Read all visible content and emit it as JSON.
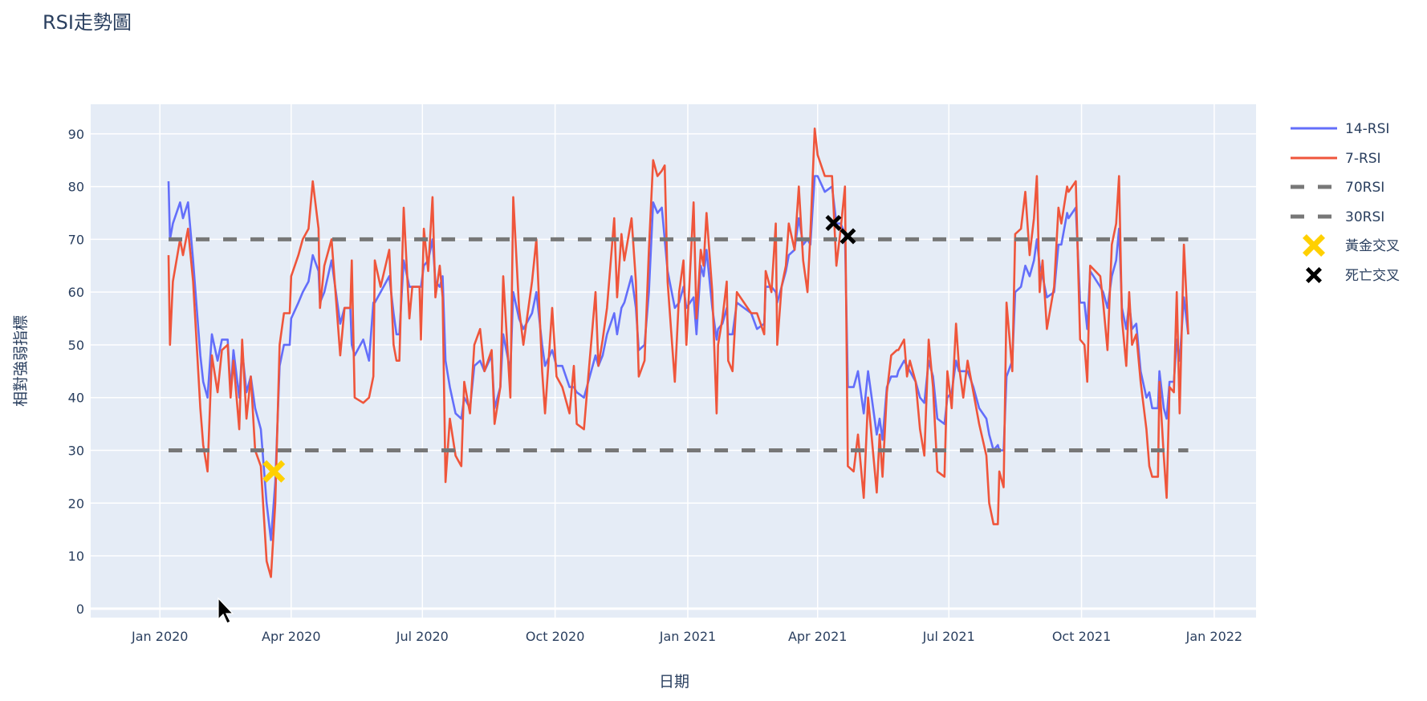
{
  "chart_data": {
    "type": "line",
    "title": "RSI走勢圖",
    "xlabel": "日期",
    "ylabel": "相對強弱指標",
    "x_origin": "2020-01-01",
    "x_unit": "days since origin",
    "xlim_days": [
      -48,
      760
    ],
    "ylim": [
      -1.7,
      95.6
    ],
    "yticks": [
      0,
      10,
      20,
      30,
      40,
      50,
      60,
      70,
      80,
      90
    ],
    "xticks": [
      {
        "label": "Jan 2020",
        "day": 0
      },
      {
        "label": "Apr 2020",
        "day": 91
      },
      {
        "label": "Jul 2020",
        "day": 182
      },
      {
        "label": "Oct 2020",
        "day": 274
      },
      {
        "label": "Jan 2021",
        "day": 366
      },
      {
        "label": "Apr 2021",
        "day": 456
      },
      {
        "label": "Jul 2021",
        "day": 547
      },
      {
        "label": "Oct 2021",
        "day": 639
      },
      {
        "label": "Jan 2022",
        "day": 731
      }
    ],
    "grid": true,
    "legend_placement": "right",
    "x_days": [
      6,
      7,
      9,
      14,
      16,
      19.5,
      23,
      28,
      30,
      33,
      36,
      40,
      43,
      47,
      49,
      51,
      55,
      57,
      60,
      63,
      66,
      70,
      74,
      77,
      80,
      83,
      86,
      90,
      91,
      96,
      99,
      103,
      106,
      110,
      111,
      114,
      119,
      125,
      128,
      132,
      133,
      135,
      141,
      145,
      148,
      149,
      153,
      159,
      162,
      164,
      166,
      169,
      173,
      175,
      180,
      181,
      183,
      186,
      189,
      191,
      194,
      196,
      198,
      201,
      205,
      209,
      211,
      215,
      218,
      222,
      225,
      230,
      232,
      236,
      238,
      243,
      245,
      249,
      252,
      258,
      261,
      265,
      267,
      272,
      275,
      279,
      284,
      287,
      289,
      294,
      297,
      302,
      304,
      307,
      310,
      315,
      317,
      320,
      322,
      327,
      330,
      332,
      336,
      339,
      342,
      345,
      348,
      350,
      352,
      357,
      360,
      363,
      365,
      370,
      372,
      375,
      377,
      379,
      383,
      386,
      387,
      390,
      393,
      394,
      397,
      400,
      410,
      414,
      419,
      420,
      424,
      427,
      428,
      431,
      434,
      436,
      440,
      443,
      446,
      449,
      451,
      454,
      456,
      461,
      466,
      469,
      472,
      475,
      477,
      481,
      484,
      488,
      491,
      497,
      499,
      501,
      504,
      507,
      511,
      512,
      516,
      518,
      520,
      524,
      527,
      530,
      533,
      536,
      539,
      544,
      546,
      549,
      552,
      554,
      557,
      560,
      564,
      568,
      573,
      575,
      578,
      581,
      582,
      585,
      587,
      591,
      593,
      597,
      600,
      603,
      606,
      608,
      610,
      612,
      615,
      620,
      623,
      625,
      629,
      630,
      635,
      638,
      641,
      643,
      645,
      652,
      654,
      657,
      660,
      663,
      665,
      667,
      670,
      672,
      674,
      677,
      680,
      684,
      686,
      688,
      692,
      693,
      696,
      698,
      700,
      703,
      705,
      707,
      710,
      713
    ],
    "series": [
      {
        "name": "14-RSI",
        "color": "#636efa",
        "values": [
          81,
          70,
          73,
          77,
          74,
          77,
          66,
          48,
          43,
          40,
          52,
          47,
          51,
          51,
          41,
          49,
          40,
          49,
          41,
          44,
          38,
          34,
          20,
          13,
          24,
          46,
          50,
          50,
          55,
          58,
          60,
          62,
          67,
          64,
          58,
          60,
          66,
          54,
          57,
          57,
          50,
          48,
          51,
          47,
          58,
          58,
          60,
          63,
          56,
          52,
          52,
          66,
          61,
          61,
          61,
          61,
          65,
          66,
          70,
          62,
          61,
          63,
          47,
          42,
          37,
          36,
          40,
          38,
          46,
          47,
          45,
          48,
          38,
          42,
          52,
          45,
          60,
          55,
          53,
          56,
          60,
          50,
          46,
          49,
          46,
          46,
          42,
          42,
          41,
          40,
          43,
          48,
          46,
          48,
          52,
          56,
          52,
          57,
          58,
          63,
          57,
          49,
          50,
          60,
          77,
          75,
          76,
          70,
          64,
          57,
          58,
          61,
          57,
          59,
          52,
          65,
          63,
          68,
          57,
          51,
          53,
          54,
          57,
          52,
          52,
          58,
          56,
          53,
          54,
          61,
          61,
          60,
          58,
          61,
          64,
          67,
          68,
          74,
          69,
          70,
          69,
          82,
          82,
          79,
          80,
          73,
          73,
          71,
          42,
          42,
          45,
          37,
          45,
          33,
          36,
          32,
          42,
          44,
          44,
          45,
          47,
          46,
          45,
          43,
          40,
          39,
          47,
          44,
          36,
          35,
          40,
          41,
          47,
          45,
          45,
          45,
          42,
          38,
          36,
          33,
          30,
          31,
          30,
          30,
          44,
          47,
          60,
          61,
          65,
          63,
          66,
          70,
          65,
          63,
          59,
          60,
          69,
          69,
          75,
          74,
          76,
          58,
          58,
          53,
          64,
          61,
          60,
          57,
          63,
          66,
          72,
          57,
          53,
          58,
          53,
          54,
          45,
          40,
          41,
          38,
          38,
          45,
          38,
          36,
          43,
          43,
          51,
          47,
          59,
          52
        ]
      },
      {
        "name": "7-RSI",
        "color": "#EF553B",
        "values": [
          67,
          50,
          62,
          70,
          67,
          72,
          62,
          38,
          31,
          26,
          48,
          41,
          49,
          50,
          40,
          47,
          34,
          51,
          36,
          44,
          30,
          27,
          9,
          6,
          20,
          50,
          56,
          56,
          63,
          67,
          70,
          72,
          81,
          72,
          57,
          65,
          70,
          48,
          57,
          57,
          66,
          40,
          39,
          40,
          44,
          66,
          61,
          68,
          50,
          47,
          47,
          76,
          55,
          61,
          61,
          51,
          72,
          64,
          78,
          59,
          65,
          59,
          24,
          36,
          29,
          27,
          43,
          37,
          50,
          53,
          45,
          49,
          35,
          42,
          63,
          40,
          78,
          57,
          50,
          62,
          70,
          45,
          37,
          57,
          44,
          42,
          37,
          46,
          35,
          34,
          44,
          60,
          46,
          51,
          57,
          74,
          59,
          71,
          66,
          74,
          62,
          44,
          47,
          68,
          85,
          82,
          83,
          84,
          62,
          43,
          60,
          66,
          50,
          77,
          55,
          68,
          65,
          75,
          60,
          37,
          50,
          55,
          62,
          47,
          45,
          60,
          56,
          56,
          52,
          64,
          60,
          73,
          50,
          61,
          65,
          73,
          68,
          80,
          66,
          60,
          71,
          91,
          86,
          82,
          82,
          65,
          72,
          80,
          27,
          26,
          33,
          21,
          40,
          22,
          33,
          25,
          41,
          48,
          49,
          49,
          51,
          44,
          47,
          43,
          34,
          29,
          51,
          42,
          26,
          25,
          45,
          38,
          54,
          46,
          40,
          47,
          41,
          35,
          29,
          20,
          16,
          16,
          26,
          23,
          58,
          45,
          71,
          72,
          79,
          67,
          74,
          82,
          60,
          66,
          53,
          61,
          76,
          73,
          80,
          79,
          81,
          51,
          50,
          43,
          65,
          63,
          58,
          49,
          69,
          73,
          82,
          55,
          46,
          60,
          50,
          52,
          43,
          34,
          27,
          25,
          25,
          43,
          29,
          21,
          42,
          41,
          60,
          37,
          69,
          52
        ]
      },
      {
        "name": "70RSI",
        "color": "#777777",
        "dash": true,
        "value": 70
      },
      {
        "name": "30RSI",
        "color": "#777777",
        "dash": true,
        "value": 30
      }
    ],
    "markers": [
      {
        "name": "黃金交叉",
        "color": "#FFD000",
        "symbol": "x",
        "points": [
          {
            "day": 79,
            "y": 26
          }
        ]
      },
      {
        "name": "死亡交叉",
        "color": "#000000",
        "symbol": "x",
        "points": [
          {
            "day": 467,
            "y": 73.1
          },
          {
            "day": 477,
            "y": 70.6
          }
        ]
      }
    ]
  }
}
